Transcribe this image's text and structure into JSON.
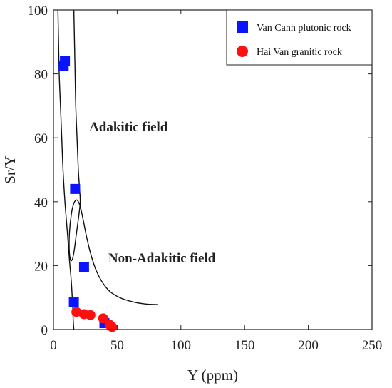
{
  "chart_data": {
    "type": "scatter",
    "xlabel": "Y (ppm)",
    "ylabel": "Sr/Y",
    "xlim": [
      0,
      250
    ],
    "ylim": [
      0,
      100
    ],
    "xticks": [
      0,
      50,
      100,
      150,
      200,
      250
    ],
    "yticks": [
      0,
      20,
      40,
      60,
      80,
      100
    ],
    "grid": false,
    "legend_position": "top-right",
    "series": [
      {
        "name": "Van Canh plutonic rock",
        "marker": "square",
        "color": "#0a14ff",
        "points": [
          {
            "x": 9,
            "y": 84
          },
          {
            "x": 8,
            "y": 82.5
          },
          {
            "x": 17,
            "y": 44
          },
          {
            "x": 24,
            "y": 19.5
          },
          {
            "x": 16,
            "y": 8.5
          },
          {
            "x": 40,
            "y": 2
          }
        ]
      },
      {
        "name": "Hai Van granitic rock",
        "marker": "circle",
        "color": "#ff1010",
        "points": [
          {
            "x": 18,
            "y": 5.5
          },
          {
            "x": 24,
            "y": 4.8
          },
          {
            "x": 29,
            "y": 4.5
          },
          {
            "x": 39,
            "y": 3.5
          },
          {
            "x": 44,
            "y": 1.5
          },
          {
            "x": 46,
            "y": 0.8
          }
        ]
      }
    ],
    "annotations": [
      {
        "text": "Adakitic field",
        "x": 28,
        "y": 62
      },
      {
        "text": "Non-Adakitic field",
        "x": 43,
        "y": 21
      }
    ],
    "field_boundary": [
      {
        "name": "outer",
        "points": [
          [
            3.5,
            100
          ],
          [
            4,
            90
          ],
          [
            4.5,
            80
          ],
          [
            5.5,
            70
          ],
          [
            6.5,
            60
          ],
          [
            7.5,
            50
          ],
          [
            9,
            40
          ],
          [
            11,
            30
          ],
          [
            12.5,
            22
          ],
          [
            14,
            15
          ],
          [
            15,
            8
          ],
          [
            15.5,
            3
          ],
          [
            16,
            0
          ]
        ]
      },
      {
        "name": "inner",
        "points": [
          [
            16,
            100
          ],
          [
            16.5,
            90
          ],
          [
            17,
            80
          ],
          [
            17.5,
            70
          ],
          [
            18.5,
            60
          ],
          [
            19.5,
            50
          ],
          [
            20.5,
            44
          ],
          [
            21,
            40
          ],
          [
            20,
            36
          ],
          [
            18,
            30
          ],
          [
            16,
            24
          ],
          [
            14,
            21.5
          ],
          [
            12.5,
            24
          ],
          [
            12.5,
            30
          ],
          [
            14,
            36
          ],
          [
            16,
            39.5
          ],
          [
            18.5,
            40.5
          ],
          [
            21,
            38.5
          ],
          [
            23.5,
            34
          ],
          [
            26,
            29
          ],
          [
            29,
            24
          ],
          [
            33,
            19
          ],
          [
            38,
            15
          ],
          [
            44,
            12
          ],
          [
            52,
            10
          ],
          [
            62,
            8.7
          ],
          [
            72,
            8
          ],
          [
            82,
            7.8
          ]
        ]
      }
    ]
  }
}
